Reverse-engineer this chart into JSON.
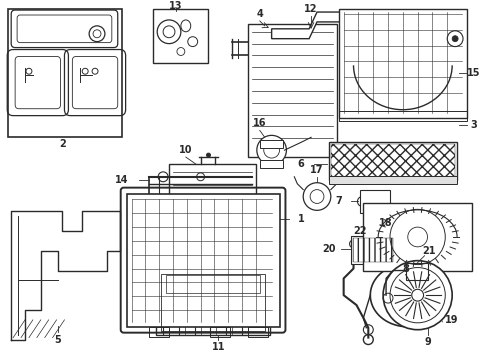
{
  "bg_color": "#ffffff",
  "line_color": "#2a2a2a",
  "fig_width": 4.9,
  "fig_height": 3.6,
  "dpi": 100,
  "label_fs": 7.0
}
